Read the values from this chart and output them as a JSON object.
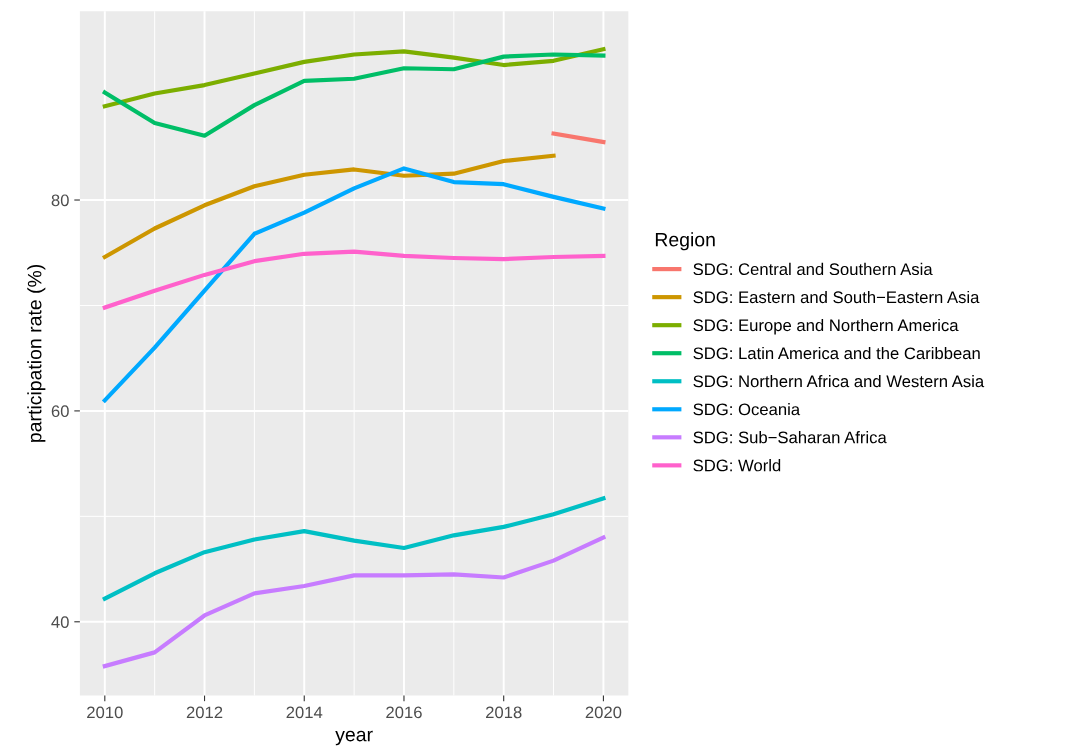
{
  "chart_data": {
    "type": "line",
    "xlabel": "year",
    "ylabel": "participation rate (%)",
    "legend_title": "Region",
    "legend": "right",
    "grid": true,
    "line_style": "solid",
    "marker": "none",
    "x": [
      2010,
      2011,
      2012,
      2013,
      2014,
      2015,
      2016,
      2017,
      2018,
      2019,
      2020
    ],
    "xlim": [
      2009.5,
      2020.5
    ],
    "xticks": [
      2010,
      2012,
      2014,
      2016,
      2018,
      2020
    ],
    "ylim": [
      33,
      97.9
    ],
    "yticks": [
      40,
      60,
      80
    ],
    "series": [
      {
        "name": "SDG: Central and Southern Asia",
        "color": "#f8766d",
        "values": [
          null,
          null,
          null,
          null,
          null,
          null,
          null,
          null,
          null,
          86.3,
          85.5
        ]
      },
      {
        "name": "SDG: Eastern and South−Eastern Asia",
        "color": "#cd9600",
        "values": [
          74.6,
          77.3,
          79.5,
          81.3,
          82.4,
          82.9,
          82.3,
          82.5,
          83.7,
          84.2,
          null
        ]
      },
      {
        "name": "SDG: Europe and Northern America",
        "color": "#7cae00",
        "values": [
          88.9,
          90.1,
          90.9,
          92.0,
          93.1,
          93.8,
          94.1,
          93.5,
          92.8,
          93.2,
          94.3
        ]
      },
      {
        "name": "SDG: Latin America and the Caribbean",
        "color": "#00be67",
        "values": [
          90.2,
          87.3,
          86.1,
          89.0,
          91.3,
          91.5,
          92.5,
          92.4,
          93.6,
          93.8,
          93.7
        ]
      },
      {
        "name": "SDG: Northern Africa and Western Asia",
        "color": "#00bfc4",
        "values": [
          42.2,
          44.6,
          46.6,
          47.8,
          48.6,
          47.7,
          47.0,
          48.2,
          49.0,
          50.2,
          51.7
        ]
      },
      {
        "name": "SDG: Oceania",
        "color": "#00a9ff",
        "values": [
          61.0,
          66.0,
          71.4,
          76.8,
          78.8,
          81.1,
          83.0,
          81.7,
          81.5,
          80.3,
          79.2
        ]
      },
      {
        "name": "SDG: Sub−Saharan Africa",
        "color": "#c77cff",
        "values": [
          35.8,
          37.1,
          40.6,
          42.7,
          43.4,
          44.4,
          44.4,
          44.5,
          44.2,
          45.8,
          48.0
        ]
      },
      {
        "name": "SDG: World",
        "color": "#ff61cc",
        "values": [
          69.8,
          71.4,
          72.9,
          74.2,
          74.9,
          75.1,
          74.7,
          74.5,
          74.4,
          74.6,
          74.7
        ]
      }
    ]
  }
}
